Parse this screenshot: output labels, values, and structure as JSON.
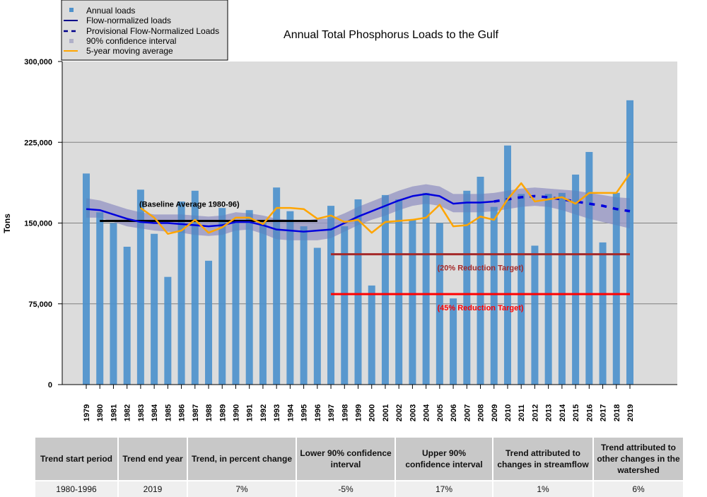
{
  "chart_data": {
    "type": "bar",
    "title": "Annual Total Phosphorus Loads to the Gulf",
    "xlabel": "",
    "ylabel": "Tons",
    "ylim": [
      0,
      300000
    ],
    "yticks": [
      0,
      75000,
      150000,
      225000,
      300000
    ],
    "ytick_labels": [
      "0",
      "75,000",
      "150,000",
      "225,000",
      "300,000"
    ],
    "grid": true,
    "legend_position": "top-left",
    "categories": [
      1979,
      1980,
      1981,
      1982,
      1983,
      1984,
      1985,
      1986,
      1987,
      1988,
      1989,
      1990,
      1991,
      1992,
      1993,
      1994,
      1995,
      1996,
      1997,
      1998,
      1999,
      2000,
      2001,
      2002,
      2003,
      2004,
      2005,
      2006,
      2007,
      2008,
      2009,
      2010,
      2011,
      2012,
      2013,
      2014,
      2015,
      2016,
      2017,
      2018,
      2019
    ],
    "series": [
      {
        "name": "Annual loads",
        "type": "bar",
        "color": "#4f92cc",
        "values": [
          196000,
          160000,
          150000,
          128000,
          181000,
          140000,
          100000,
          170000,
          180000,
          115000,
          164000,
          152000,
          162000,
          151000,
          183000,
          161000,
          147000,
          127000,
          166000,
          147000,
          172000,
          92000,
          176000,
          172000,
          153000,
          178000,
          150000,
          80000,
          180000,
          193000,
          165000,
          222000,
          177000,
          129000,
          177000,
          178000,
          195000,
          216000,
          132000,
          178000,
          264000
        ]
      },
      {
        "name": "Flow-normalized loads",
        "type": "line",
        "color": "#0000dd",
        "values": [
          163000,
          162000,
          158000,
          154000,
          151000,
          150000,
          150000,
          149000,
          148000,
          147000,
          148000,
          151000,
          151000,
          148000,
          144000,
          143000,
          142000,
          143000,
          144000,
          150000,
          156000,
          161000,
          166000,
          171000,
          175000,
          177000,
          175000,
          168000,
          169000,
          169000,
          170000,
          null,
          null,
          null,
          null,
          null,
          null,
          null,
          null,
          null,
          null
        ]
      },
      {
        "name": "Provisional Flow-Normalized Loads",
        "type": "line-dashed",
        "color": "#0000dd",
        "values": [
          null,
          null,
          null,
          null,
          null,
          null,
          null,
          null,
          null,
          null,
          null,
          null,
          null,
          null,
          null,
          null,
          null,
          null,
          null,
          null,
          null,
          null,
          null,
          null,
          null,
          null,
          null,
          null,
          null,
          null,
          170000,
          172000,
          174000,
          175000,
          174000,
          172000,
          170000,
          168000,
          166000,
          163000,
          161000
        ]
      },
      {
        "name": "90% confidence interval",
        "type": "band",
        "color": "#a9a9cf",
        "lower": [
          155000,
          155000,
          151000,
          147000,
          145000,
          143000,
          142000,
          141000,
          139000,
          138000,
          139000,
          143000,
          144000,
          140000,
          135000,
          134000,
          134000,
          134000,
          136000,
          142000,
          148000,
          153000,
          157000,
          162000,
          166000,
          168000,
          166000,
          160000,
          160000,
          160000,
          161000,
          163000,
          165000,
          166000,
          165000,
          162000,
          158000,
          154000,
          151000,
          148000,
          145000
        ],
        "upper": [
          173000,
          171000,
          167000,
          163000,
          160000,
          158000,
          158000,
          158000,
          157000,
          156000,
          157000,
          160000,
          159000,
          157000,
          154000,
          153000,
          152000,
          154000,
          154000,
          159000,
          165000,
          170000,
          175000,
          180000,
          184000,
          186000,
          184000,
          177000,
          177000,
          177000,
          178000,
          180000,
          182000,
          183000,
          182000,
          181000,
          180000,
          178000,
          176000,
          174000,
          173000
        ]
      },
      {
        "name": "5-year moving average",
        "type": "line",
        "color": "#ffa500",
        "values": [
          null,
          null,
          null,
          null,
          164000,
          155000,
          140000,
          143000,
          153000,
          141000,
          146000,
          155000,
          155000,
          149000,
          164000,
          164000,
          163000,
          154000,
          157000,
          151000,
          153000,
          141000,
          151000,
          152000,
          153000,
          155000,
          167000,
          147000,
          148000,
          156000,
          153000,
          172000,
          187000,
          170000,
          172000,
          174000,
          168000,
          178000,
          178000,
          178000,
          196000
        ]
      }
    ],
    "reference_lines": [
      {
        "label": "(Baseline Average 1980-96)",
        "value": 152000,
        "start": 1980,
        "end": 1996,
        "color": "#000000"
      },
      {
        "label": "(20% Reduction Target)",
        "value": 121000,
        "start": 1997,
        "end": 2019,
        "color": "#a52a2a"
      },
      {
        "label": "(45% Reduction Target)",
        "value": 84000,
        "start": 1997,
        "end": 2019,
        "color": "#ff0000"
      }
    ]
  },
  "legend": {
    "items": [
      {
        "label": "Annual loads",
        "icon": "square-marker"
      },
      {
        "label": "Flow-normalized loads",
        "icon": "solid-line"
      },
      {
        "label": "Provisional Flow-Normalized Loads",
        "icon": "dashed-line"
      },
      {
        "label": "90% confidence interval",
        "icon": "square-marker"
      },
      {
        "label": "5-year moving average",
        "icon": "solid-line"
      }
    ]
  },
  "trend_table": {
    "headers": [
      "Trend start period",
      "Trend end year",
      "Trend, in percent change",
      "Lower 90% confidence interval",
      "Upper 90% confidence interval",
      "Trend attributed to changes in streamflow",
      "Trend attributed to other changes in the watershed"
    ],
    "rows": [
      [
        "1980-1996",
        "2019",
        "7%",
        "-5%",
        "17%",
        "1%",
        "6%"
      ]
    ]
  }
}
